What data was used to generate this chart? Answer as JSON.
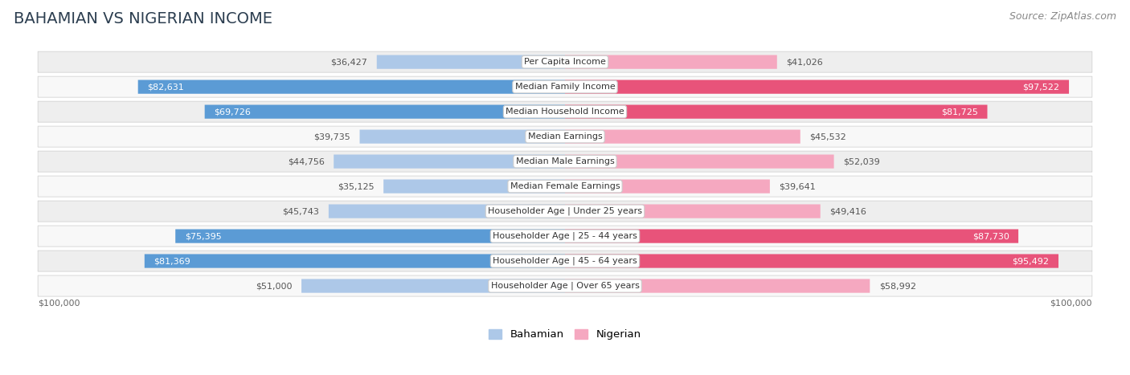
{
  "title": "BAHAMIAN VS NIGERIAN INCOME",
  "source": "Source: ZipAtlas.com",
  "categories": [
    "Per Capita Income",
    "Median Family Income",
    "Median Household Income",
    "Median Earnings",
    "Median Male Earnings",
    "Median Female Earnings",
    "Householder Age | Under 25 years",
    "Householder Age | 25 - 44 years",
    "Householder Age | 45 - 64 years",
    "Householder Age | Over 65 years"
  ],
  "bahamian": [
    36427,
    82631,
    69726,
    39735,
    44756,
    35125,
    45743,
    75395,
    81369,
    51000
  ],
  "nigerian": [
    41026,
    97522,
    81725,
    45532,
    52039,
    39641,
    49416,
    87730,
    95492,
    58992
  ],
  "bahamian_labels": [
    "$36,427",
    "$82,631",
    "$69,726",
    "$39,735",
    "$44,756",
    "$35,125",
    "$45,743",
    "$75,395",
    "$81,369",
    "$51,000"
  ],
  "nigerian_labels": [
    "$41,026",
    "$97,522",
    "$81,725",
    "$45,532",
    "$52,039",
    "$39,641",
    "$49,416",
    "$87,730",
    "$95,492",
    "$58,992"
  ],
  "max_value": 100000,
  "color_bahamian_light": "#adc8e8",
  "color_bahamian_dark": "#5b9bd5",
  "color_nigerian_light": "#f5a8c0",
  "color_nigerian_dark": "#e8537a",
  "row_bg_odd": "#eeeeee",
  "row_bg_even": "#f8f8f8",
  "axis_label_left": "$100,000",
  "axis_label_right": "$100,000",
  "legend_bahamian": "Bahamian",
  "legend_nigerian": "Nigerian",
  "dark_threshold": 60000,
  "title_fontsize": 14,
  "source_fontsize": 9,
  "label_fontsize": 8,
  "value_fontsize": 8
}
